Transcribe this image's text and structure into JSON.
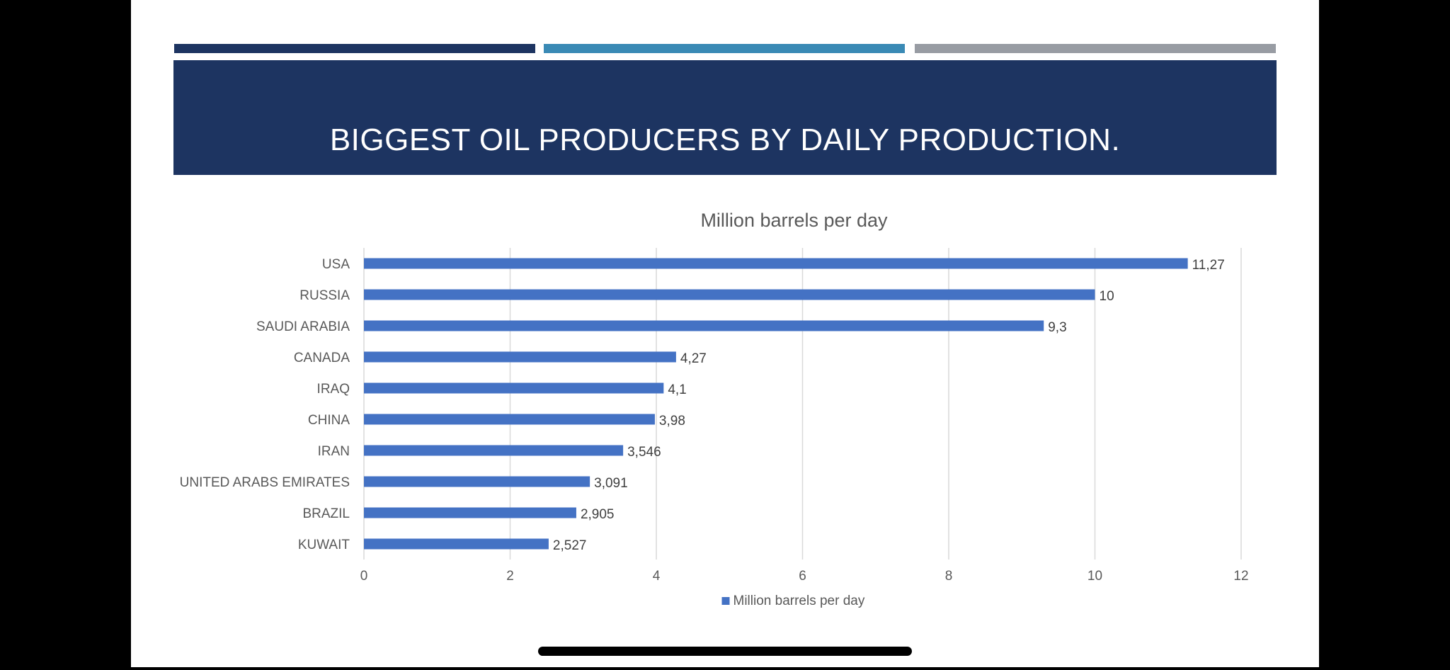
{
  "slide": {
    "title": "BIGGEST OIL PRODUCERS BY DAILY PRODUCTION.",
    "colors": {
      "banner": "#1d3461",
      "accent_dark": "#1d3461",
      "accent_teal": "#3a8ab5",
      "accent_gray": "#989ca3"
    }
  },
  "chart_data": {
    "type": "bar",
    "orientation": "horizontal",
    "title": "Million barrels per day",
    "categories": [
      "USA",
      "RUSSIA",
      "SAUDI ARABIA",
      "CANADA",
      "IRAQ",
      "CHINA",
      "IRAN",
      "UNITED ARABS EMIRATES",
      "BRAZIL",
      "KUWAIT"
    ],
    "series": [
      {
        "name": "Million barrels per day",
        "values": [
          11.27,
          10,
          9.3,
          4.27,
          4.1,
          3.98,
          3.546,
          3.091,
          2.905,
          2.527
        ],
        "labels": [
          "11,27",
          "10",
          "9,3",
          "4,27",
          "4,1",
          "3,98",
          "3,546",
          "3,091",
          "2,905",
          "2,527"
        ],
        "color": "#4472c4"
      }
    ],
    "xlim": [
      0,
      12
    ],
    "xticks": [
      "0",
      "2",
      "4",
      "6",
      "8",
      "10",
      "12"
    ],
    "grid": true,
    "legend": "bottom"
  }
}
